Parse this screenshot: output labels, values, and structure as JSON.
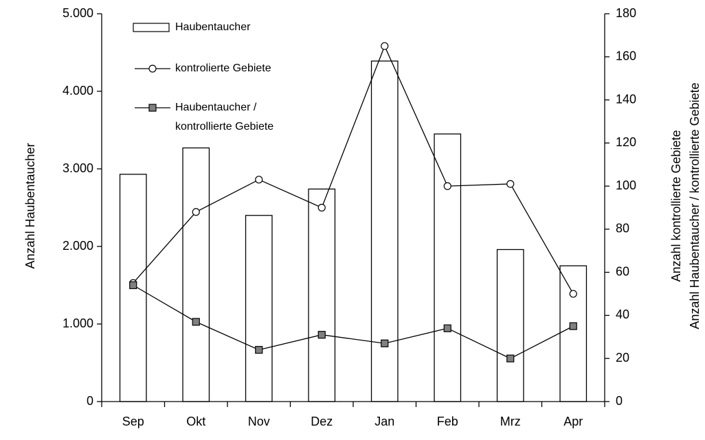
{
  "chart_data": {
    "type": "bar_line",
    "categories": [
      "Sep",
      "Okt",
      "Nov",
      "Dez",
      "Jan",
      "Feb",
      "Mrz",
      "Apr"
    ],
    "ylabel": "Anzahl Haubentaucher",
    "y2label": [
      "Anzahl kontrollierte Gebiete",
      "Anzahl Haubentaucher / kontrollierte Gebiete"
    ],
    "ylim": [
      0,
      5000
    ],
    "yticks": [
      0,
      {
        "value": 1000,
        "label": "1.000"
      },
      {
        "value": 2000,
        "label": "2.000"
      },
      {
        "value": 3000,
        "label": "3.000"
      },
      {
        "value": 4000,
        "label": "4.000"
      },
      {
        "value": 5000,
        "label": "5.000"
      }
    ],
    "y2lim": [
      0,
      180
    ],
    "y2ticks": [
      0,
      20,
      40,
      60,
      80,
      100,
      120,
      140,
      160,
      180
    ],
    "series": [
      {
        "name": "Haubentaucher",
        "type": "bar",
        "color": "#ffffff",
        "values": [
          2930,
          3270,
          2400,
          2740,
          4390,
          3450,
          1960,
          1750
        ]
      },
      {
        "name": "kontrolierte Gebiete",
        "type": "line",
        "marker": "circle",
        "axis": "y2",
        "color": "#ffffff",
        "values": [
          55,
          88,
          103,
          90,
          165,
          100,
          101,
          50
        ]
      },
      {
        "name": "Haubentaucher / kontrollierte Gebiete",
        "type": "line",
        "marker": "square",
        "axis": "y2",
        "color": "#808080",
        "values": [
          54,
          37,
          24,
          31,
          27,
          34,
          20,
          35
        ]
      }
    ]
  }
}
